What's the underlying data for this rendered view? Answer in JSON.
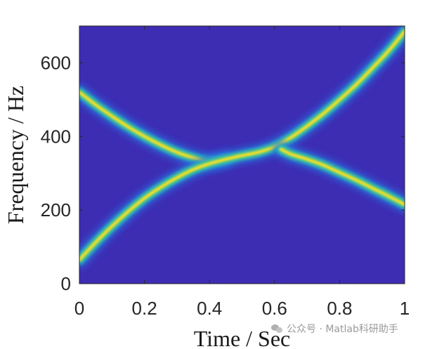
{
  "chart_data": {
    "type": "heatmap",
    "title": "",
    "xlabel": "Time / Sec",
    "ylabel": "Frequency / Hz",
    "xlim": [
      0,
      1
    ],
    "ylim": [
      0,
      700
    ],
    "xticks": [
      0,
      0.2,
      0.4,
      0.6,
      0.8,
      1
    ],
    "xtick_labels": [
      "0",
      "0.2",
      "0.4",
      "0.6",
      "0.8",
      "1"
    ],
    "yticks": [
      0,
      200,
      400,
      600
    ],
    "ytick_labels": [
      "0",
      "200",
      "400",
      "600"
    ],
    "grid": false,
    "colormap": "parula",
    "background_color": "#3d2db3",
    "ridges": [
      {
        "t": [
          0.0,
          0.05,
          0.1,
          0.15,
          0.2,
          0.25,
          0.3,
          0.35,
          0.4,
          0.45
        ],
        "f": [
          520,
          486,
          455,
          426,
          400,
          377,
          357,
          342,
          332,
          338
        ]
      },
      {
        "t": [
          0.0,
          0.05,
          0.1,
          0.15,
          0.2,
          0.25,
          0.3,
          0.35,
          0.4,
          0.45,
          0.5,
          0.55,
          0.6,
          0.65,
          0.7,
          0.75,
          0.8,
          0.85,
          0.9,
          0.95,
          1.0
        ],
        "f": [
          65,
          112,
          156,
          196,
          232,
          262,
          288,
          310,
          326,
          338,
          348,
          357,
          372,
          397,
          428,
          462,
          500,
          540,
          585,
          632,
          685
        ]
      },
      {
        "t": [
          0.62,
          0.65,
          0.7,
          0.75,
          0.8,
          0.85,
          0.9,
          0.95,
          1.0
        ],
        "f": [
          365,
          352,
          338,
          322,
          302,
          282,
          260,
          238,
          215
        ]
      }
    ]
  },
  "watermark": {
    "icon": "wechat-icon",
    "text": "公众号 · Matlab科研助手"
  }
}
